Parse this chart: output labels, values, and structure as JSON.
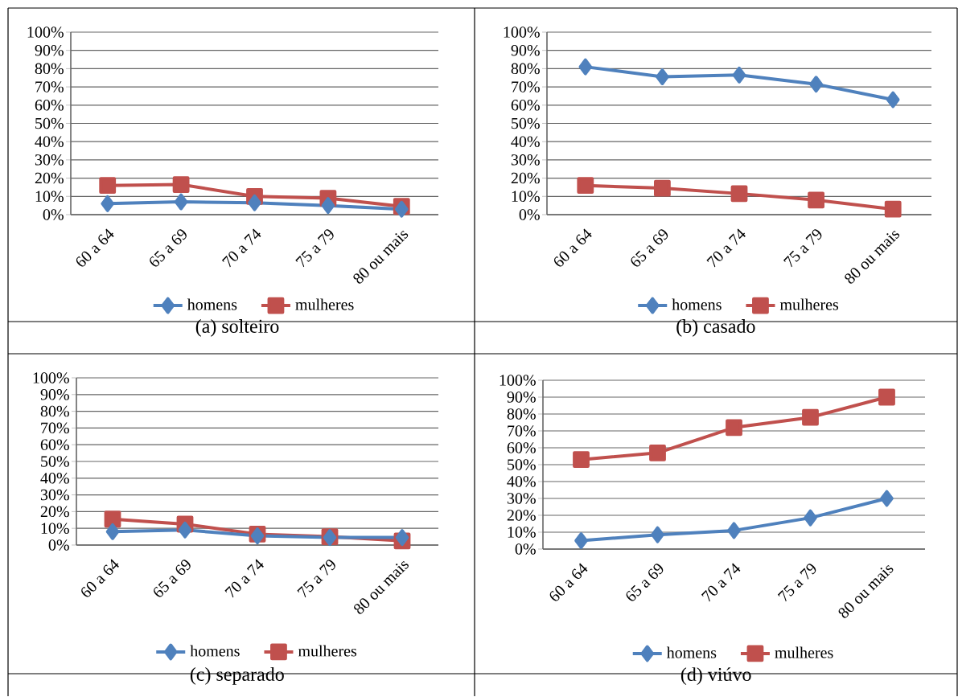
{
  "chart_data": [
    {
      "type": "line",
      "title": "(a)  solteiro",
      "categories": [
        "60 a 64",
        "65 a 69",
        "70 a 74",
        "75 a 79",
        "80 ou mais"
      ],
      "series": [
        {
          "name": "homens",
          "color": "#4f81bd",
          "marker": "diamond",
          "values": [
            6,
            7,
            6.5,
            5,
            3
          ]
        },
        {
          "name": "mulheres",
          "color": "#c0504d",
          "marker": "square",
          "values": [
            16,
            16.5,
            10,
            9,
            4.5
          ]
        }
      ],
      "ylim": [
        0,
        100
      ],
      "yticks": [
        {
          "value": 0,
          "label": "0%"
        },
        {
          "value": 10,
          "label": "10%"
        },
        {
          "value": 20,
          "label": "20%"
        },
        {
          "value": 30,
          "label": "30%"
        },
        {
          "value": 40,
          "label": "40%"
        },
        {
          "value": 50,
          "label": "50%"
        },
        {
          "value": 60,
          "label": "60%"
        },
        {
          "value": 70,
          "label": "70%"
        },
        {
          "value": 80,
          "label": "80%"
        },
        {
          "value": 90,
          "label": "90%"
        },
        {
          "value": 100,
          "label": "100%"
        }
      ],
      "grid": "y",
      "legend": "bottom",
      "line_style": "solid"
    },
    {
      "type": "line",
      "title": "(b)  casado",
      "categories": [
        "60 a 64",
        "65 a 69",
        "70 a 74",
        "75 a 79",
        "80 ou mais"
      ],
      "series": [
        {
          "name": "homens",
          "color": "#4f81bd",
          "marker": "diamond",
          "values": [
            81,
            75.5,
            76.5,
            71.5,
            63
          ]
        },
        {
          "name": "mulheres",
          "color": "#c0504d",
          "marker": "square",
          "values": [
            16,
            14.5,
            11.5,
            8,
            3
          ]
        }
      ],
      "ylim": [
        0,
        100
      ],
      "yticks": [
        {
          "value": 0,
          "label": "0%"
        },
        {
          "value": 10,
          "label": "10%"
        },
        {
          "value": 20,
          "label": "20%"
        },
        {
          "value": 30,
          "label": "30%"
        },
        {
          "value": 40,
          "label": "40%"
        },
        {
          "value": 50,
          "label": "50%"
        },
        {
          "value": 60,
          "label": "60%"
        },
        {
          "value": 70,
          "label": "70%"
        },
        {
          "value": 80,
          "label": "80%"
        },
        {
          "value": 90,
          "label": "90%"
        },
        {
          "value": 100,
          "label": "100%"
        }
      ],
      "grid": "y",
      "legend": "bottom",
      "line_style": "solid"
    },
    {
      "type": "line",
      "title": "(c)  separado",
      "categories": [
        "60 a 64",
        "65 a 69",
        "70 a 74",
        "75 a 79",
        "80 ou mais"
      ],
      "series": [
        {
          "name": "homens",
          "color": "#4f81bd",
          "marker": "diamond",
          "values": [
            8,
            9,
            5.5,
            4.5,
            4.5
          ]
        },
        {
          "name": "mulheres",
          "color": "#c0504d",
          "marker": "square",
          "values": [
            15.5,
            12.5,
            6.5,
            5,
            2.5
          ]
        }
      ],
      "ylim": [
        0,
        100
      ],
      "yticks": [
        {
          "value": 0,
          "label": "0%"
        },
        {
          "value": 10,
          "label": "10%"
        },
        {
          "value": 20,
          "label": "20%"
        },
        {
          "value": 30,
          "label": "30%"
        },
        {
          "value": 40,
          "label": "40%"
        },
        {
          "value": 50,
          "label": "50%"
        },
        {
          "value": 60,
          "label": "60%"
        },
        {
          "value": 70,
          "label": "70%"
        },
        {
          "value": 80,
          "label": "80%"
        },
        {
          "value": 90,
          "label": "90%"
        },
        {
          "value": 100,
          "label": "100%"
        }
      ],
      "grid": "y",
      "legend": "bottom",
      "line_style": "solid"
    },
    {
      "type": "line",
      "title": "(d)  viúvo",
      "categories": [
        "60 a 64",
        "65 a 69",
        "70 a 74",
        "75 a 79",
        "80 ou mais"
      ],
      "series": [
        {
          "name": "homens",
          "color": "#4f81bd",
          "marker": "diamond",
          "values": [
            5,
            8.5,
            11,
            18.5,
            30
          ]
        },
        {
          "name": "mulheres",
          "color": "#c0504d",
          "marker": "square",
          "values": [
            53,
            57,
            72,
            78,
            90
          ]
        }
      ],
      "ylim": [
        0,
        100
      ],
      "yticks": [
        {
          "value": 0,
          "label": "0%"
        },
        {
          "value": 10,
          "label": "10%"
        },
        {
          "value": 20,
          "label": "20%"
        },
        {
          "value": 30,
          "label": "30%"
        },
        {
          "value": 40,
          "label": "40%"
        },
        {
          "value": 50,
          "label": "50%"
        },
        {
          "value": 60,
          "label": "60%"
        },
        {
          "value": 70,
          "label": "70%"
        },
        {
          "value": 80,
          "label": "80%"
        },
        {
          "value": 90,
          "label": "90%"
        },
        {
          "value": 100,
          "label": "100%"
        }
      ],
      "grid": "y",
      "legend": "bottom",
      "line_style": "solid"
    }
  ]
}
